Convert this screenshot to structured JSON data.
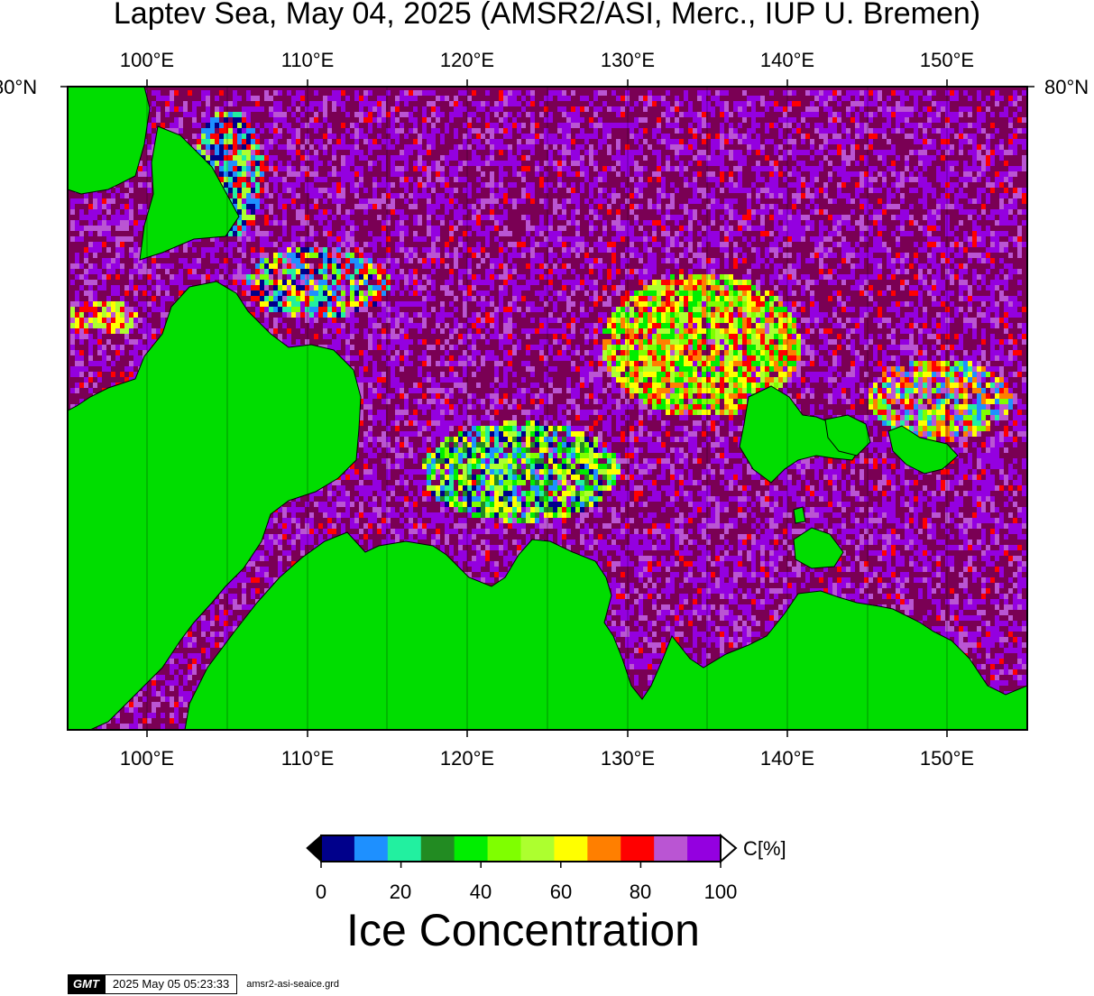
{
  "title": "Laptev Sea, May 04, 2025 (AMSR2/ASI, Merc., IUP U. Bremen)",
  "map": {
    "lon_labels": [
      "100°E",
      "110°E",
      "120°E",
      "130°E",
      "140°E",
      "150°E"
    ],
    "lat_label_left": "80°N",
    "lat_label_right": "80°N",
    "lon_range": [
      95,
      155
    ],
    "colors": {
      "land": "#00dd00",
      "open_water": "#7a0054",
      "ice_high": "#9400e0"
    }
  },
  "colorbar": {
    "title": "Ice Concentration",
    "unit": "C[%]",
    "tick_labels": [
      "0",
      "20",
      "40",
      "60",
      "80",
      "100"
    ],
    "colors": [
      "#00008b",
      "#1e90ff",
      "#22f0a0",
      "#228b22",
      "#00ee00",
      "#7fff00",
      "#adff2f",
      "#ffff00",
      "#ff7f00",
      "#ff0000",
      "#ba55d3",
      "#9400e0"
    ],
    "below_color": "#000000",
    "above_color": "#ffffff"
  },
  "footer": {
    "logo": "GMT",
    "timestamp": "2025 May 05 05:23:33",
    "filename": "amsr2-asi-seaice.grd"
  }
}
